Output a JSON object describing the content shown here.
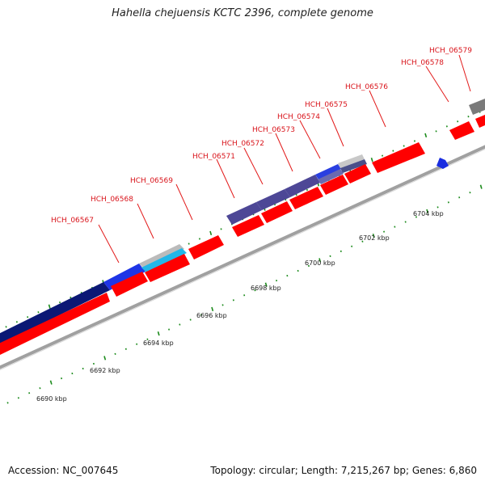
{
  "title": "Hahella chejuensis KCTC 2396, complete genome",
  "footer": {
    "accession": "Accession: NC_007645",
    "summary": "Topology: circular; Length: 7,215,267 bp; Genes: 6,860"
  },
  "colors": {
    "cds_forward": "#ff0000",
    "label": "#d9141b",
    "backbone": "#9a9a9a",
    "tick": "#1a8a1a"
  },
  "gene_labels": [
    "HCH_06567",
    "HCH_06568",
    "HCH_06569",
    "HCH_06571",
    "HCH_06572",
    "HCH_06573",
    "HCH_06574",
    "HCH_06575",
    "HCH_06576",
    "HCH_06578",
    "HCH_06579"
  ],
  "scale_labels": [
    "6690 kbp",
    "6692 kbp",
    "6694 kbp",
    "6696 kbp",
    "6698 kbp",
    "6700 kbp",
    "6702 kbp",
    "6704 kbp"
  ]
}
